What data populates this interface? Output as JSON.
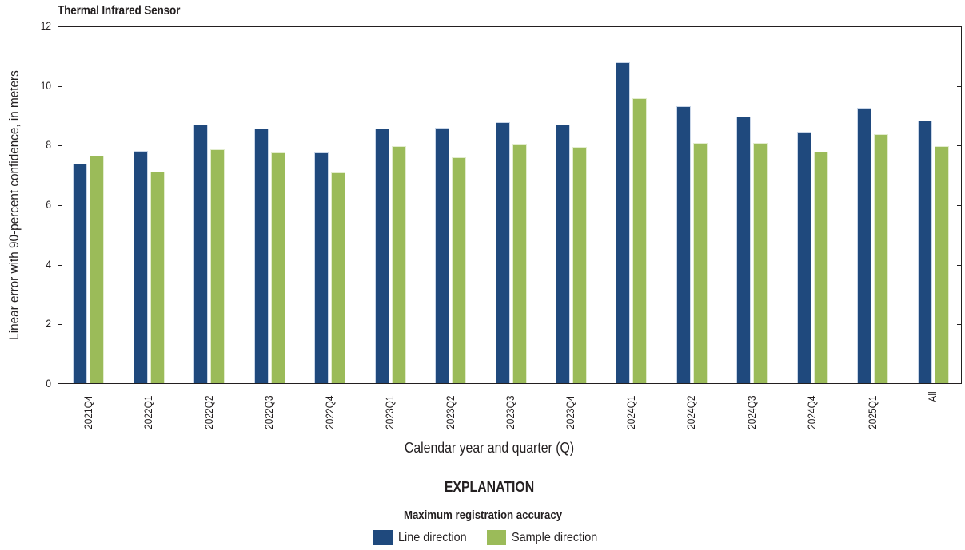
{
  "chart_data": {
    "type": "bar",
    "title": "Thermal Infrared Sensor",
    "xlabel": "Calendar year and quarter (Q)",
    "ylabel": "Linear error with 90-percent confidence, in meters",
    "ylim": [
      0,
      12
    ],
    "yticks": [
      0,
      2,
      4,
      6,
      8,
      10,
      12
    ],
    "grid": false,
    "legend_position": "bottom",
    "categories": [
      "2021Q4",
      "2022Q1",
      "2022Q2",
      "2022Q3",
      "2022Q4",
      "2023Q1",
      "2023Q2",
      "2023Q3",
      "2023Q4",
      "2024Q1",
      "2024Q2",
      "2024Q3",
      "2024Q4",
      "2025Q1",
      "All"
    ],
    "series": [
      {
        "name": "Line direction",
        "color": "#1f497d",
        "values": [
          7.38,
          7.82,
          8.71,
          8.58,
          7.76,
          8.56,
          8.6,
          8.78,
          8.7,
          10.8,
          9.31,
          8.97,
          8.47,
          9.27,
          8.84
        ]
      },
      {
        "name": "Sample direction",
        "color": "#9bbb59",
        "values": [
          7.66,
          7.13,
          7.88,
          7.76,
          7.1,
          7.97,
          7.6,
          8.04,
          7.96,
          9.58,
          8.08,
          8.08,
          7.8,
          8.38,
          7.97
        ]
      }
    ]
  },
  "legend": {
    "heading": "EXPLANATION",
    "subheading": "Maximum registration accuracy",
    "items": [
      {
        "label": "Line direction",
        "color": "#1f497d"
      },
      {
        "label": "Sample direction",
        "color": "#9bbb59"
      }
    ]
  }
}
